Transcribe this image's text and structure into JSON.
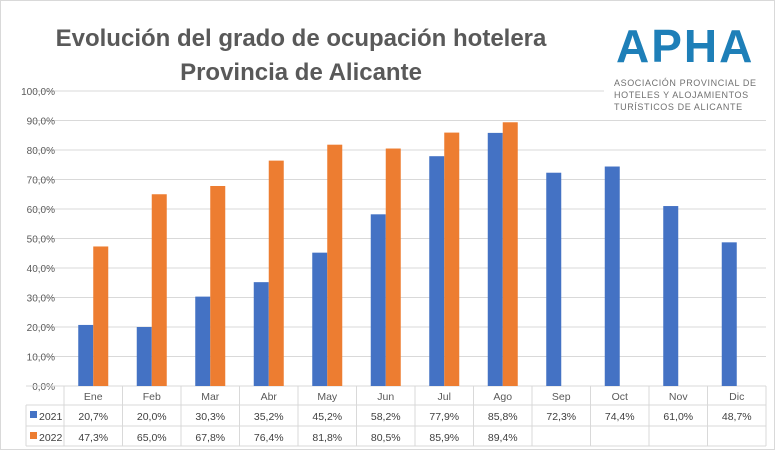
{
  "chart_data": {
    "type": "bar",
    "title": "Evolución del grado de ocupación hotelera",
    "subtitle": "Provincia de Alicante",
    "categories": [
      "Ene",
      "Feb",
      "Mar",
      "Abr",
      "May",
      "Jun",
      "Jul",
      "Ago",
      "Sep",
      "Oct",
      "Nov",
      "Dic"
    ],
    "series": [
      {
        "name": "2021",
        "color": "#4472c4",
        "values": [
          20.7,
          20.0,
          30.3,
          35.2,
          45.2,
          58.2,
          77.9,
          85.8,
          72.3,
          74.4,
          61.0,
          48.7
        ],
        "labels": [
          "20,7%",
          "20,0%",
          "30,3%",
          "35,2%",
          "45,2%",
          "58,2%",
          "77,9%",
          "85,8%",
          "72,3%",
          "74,4%",
          "61,0%",
          "48,7%"
        ]
      },
      {
        "name": "2022",
        "color": "#ed7d31",
        "values": [
          47.3,
          65.0,
          67.8,
          76.4,
          81.8,
          80.5,
          85.9,
          89.4,
          null,
          null,
          null,
          null
        ],
        "labels": [
          "47,3%",
          "65,0%",
          "67,8%",
          "76,4%",
          "81,8%",
          "80,5%",
          "85,9%",
          "89,4%",
          "",
          "",
          "",
          ""
        ]
      }
    ],
    "ylim": [
      0,
      100
    ],
    "yticks": [
      "0,0%",
      "10,0%",
      "20,0%",
      "30,0%",
      "40,0%",
      "50,0%",
      "60,0%",
      "70,0%",
      "80,0%",
      "90,0%",
      "100,0%"
    ],
    "legend": "data-table",
    "grid": true
  },
  "logo": {
    "name": "APHA",
    "text": [
      "ASOCIACIÓN PROVINCIAL DE",
      "HOTELES Y ALOJAMIENTOS",
      "TURÍSTICOS DE ALICANTE"
    ]
  }
}
